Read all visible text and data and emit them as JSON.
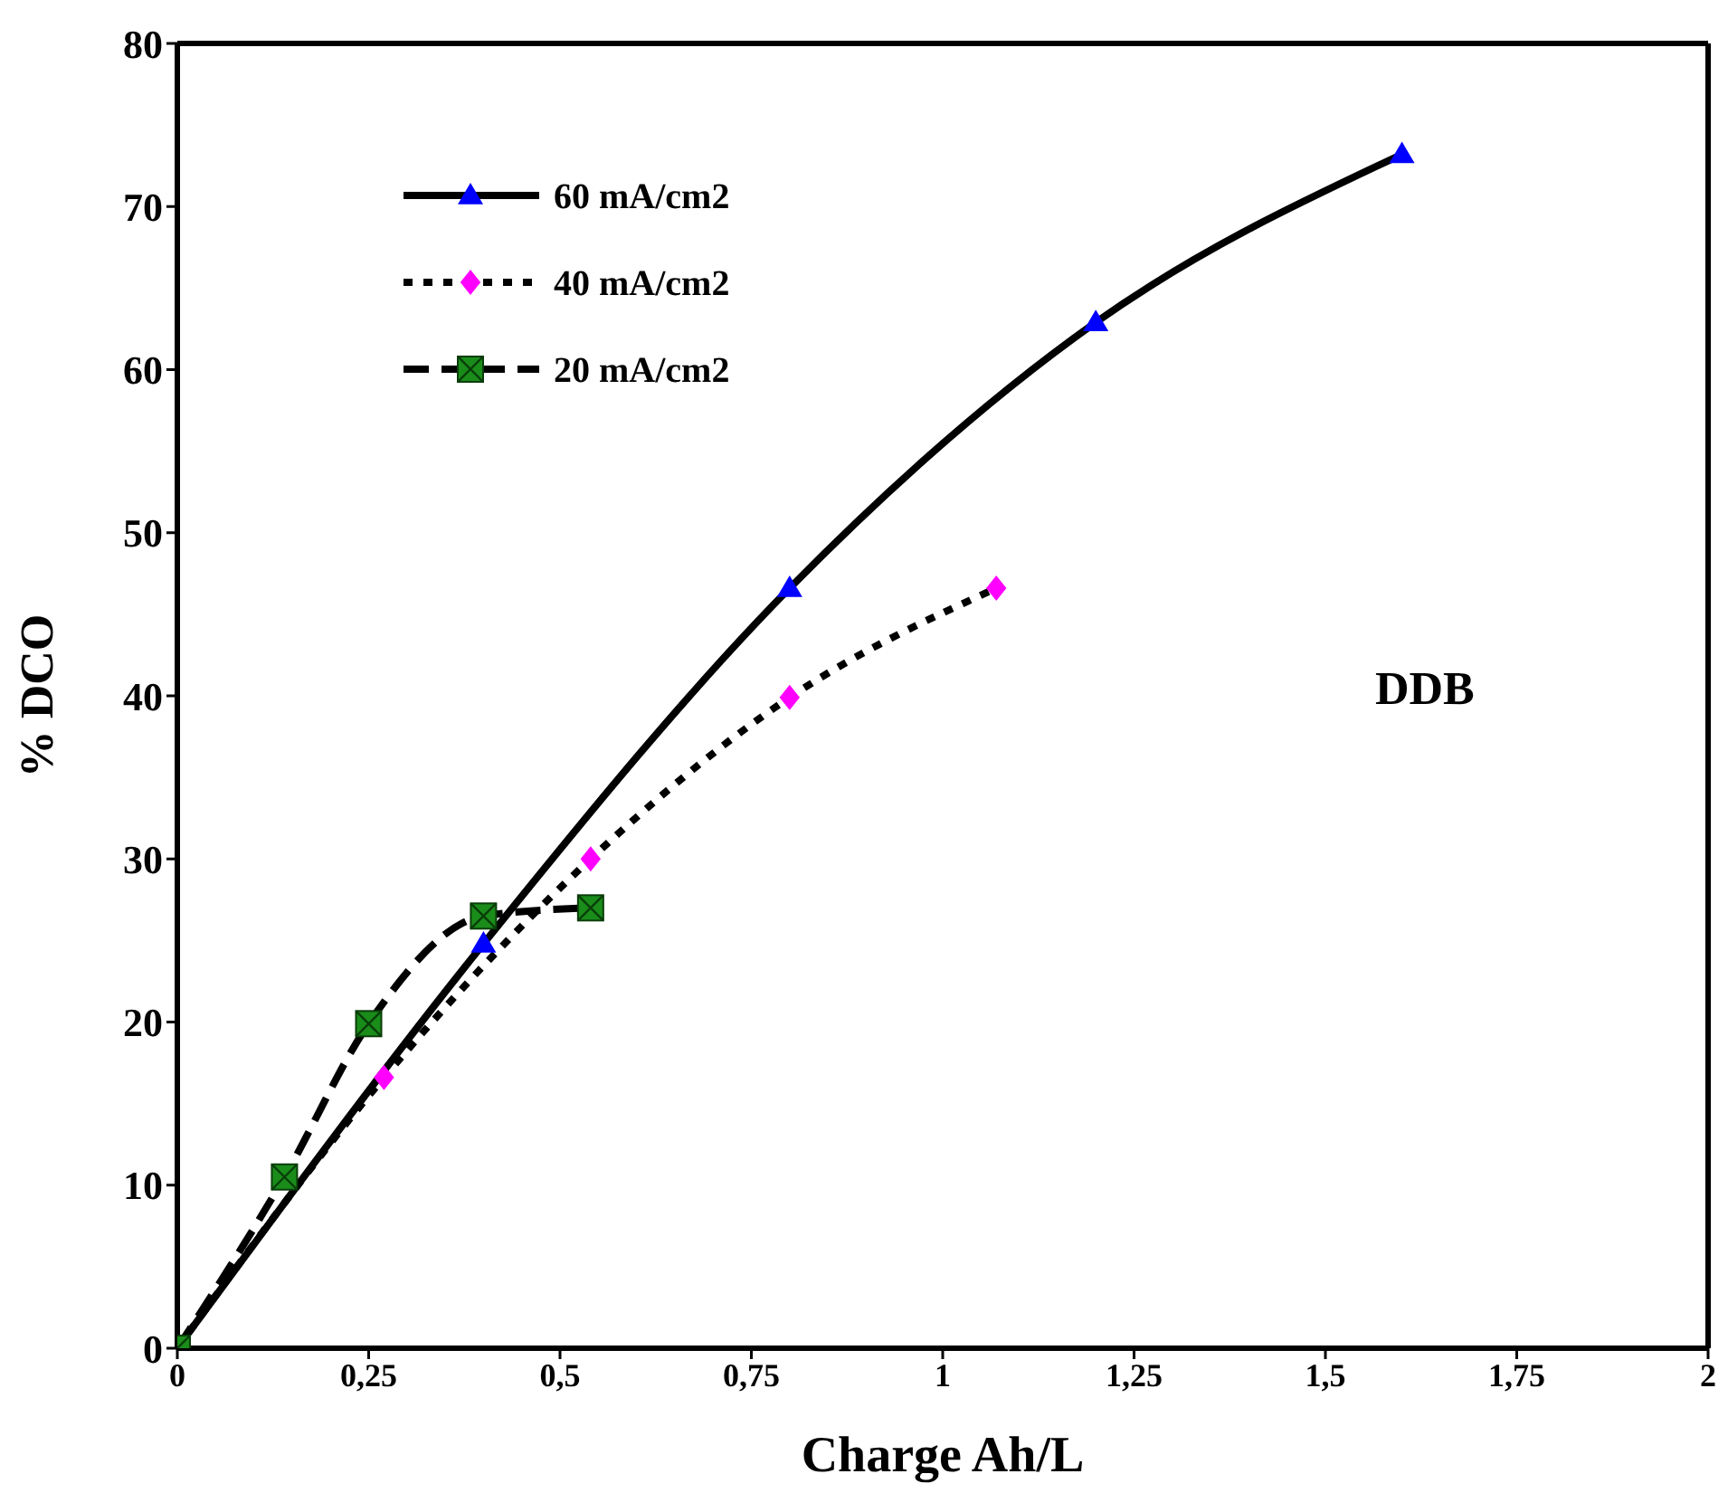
{
  "chart_data": {
    "type": "line",
    "xlabel": "Charge Ah/L",
    "ylabel": "% DCO",
    "xlim": [
      0,
      2
    ],
    "xticks": [
      0,
      {
        "value": 0.25,
        "label": "0,25"
      },
      {
        "value": 0.5,
        "label": "0,5"
      },
      {
        "value": 0.75,
        "label": "0,75"
      },
      1,
      {
        "value": 1.25,
        "label": "1,25"
      },
      {
        "value": 1.5,
        "label": "1,5"
      },
      {
        "value": 1.75,
        "label": "1,75"
      },
      2
    ],
    "ylim": [
      0,
      80
    ],
    "yticks": [
      0,
      10,
      20,
      30,
      40,
      50,
      60,
      70,
      80
    ],
    "legend": "top left",
    "annotations": [
      "DDB"
    ],
    "series": [
      {
        "name": "60 mA/cm2",
        "color": "#0000ff",
        "marker": "triangle",
        "line_style": "solid",
        "x": [
          0,
          0.4,
          0.8,
          1.2,
          1.6
        ],
        "values": [
          0,
          24.8,
          46.6,
          62.9,
          73.2
        ]
      },
      {
        "name": "40 mA/cm2",
        "color": "#ff00ff",
        "marker": "diamond",
        "line_style": "dotted",
        "x": [
          0,
          0.27,
          0.54,
          0.8,
          1.07
        ],
        "values": [
          0,
          16.6,
          30,
          39.9,
          46.6
        ]
      },
      {
        "name": "20 mA/cm2",
        "color": "#1a8c1a",
        "marker": "square",
        "line_style": "dashed",
        "x": [
          0,
          0.14,
          0.25,
          0.4,
          0.54
        ],
        "values": [
          0,
          10.5,
          19.9,
          26.5,
          27
        ]
      }
    ]
  }
}
